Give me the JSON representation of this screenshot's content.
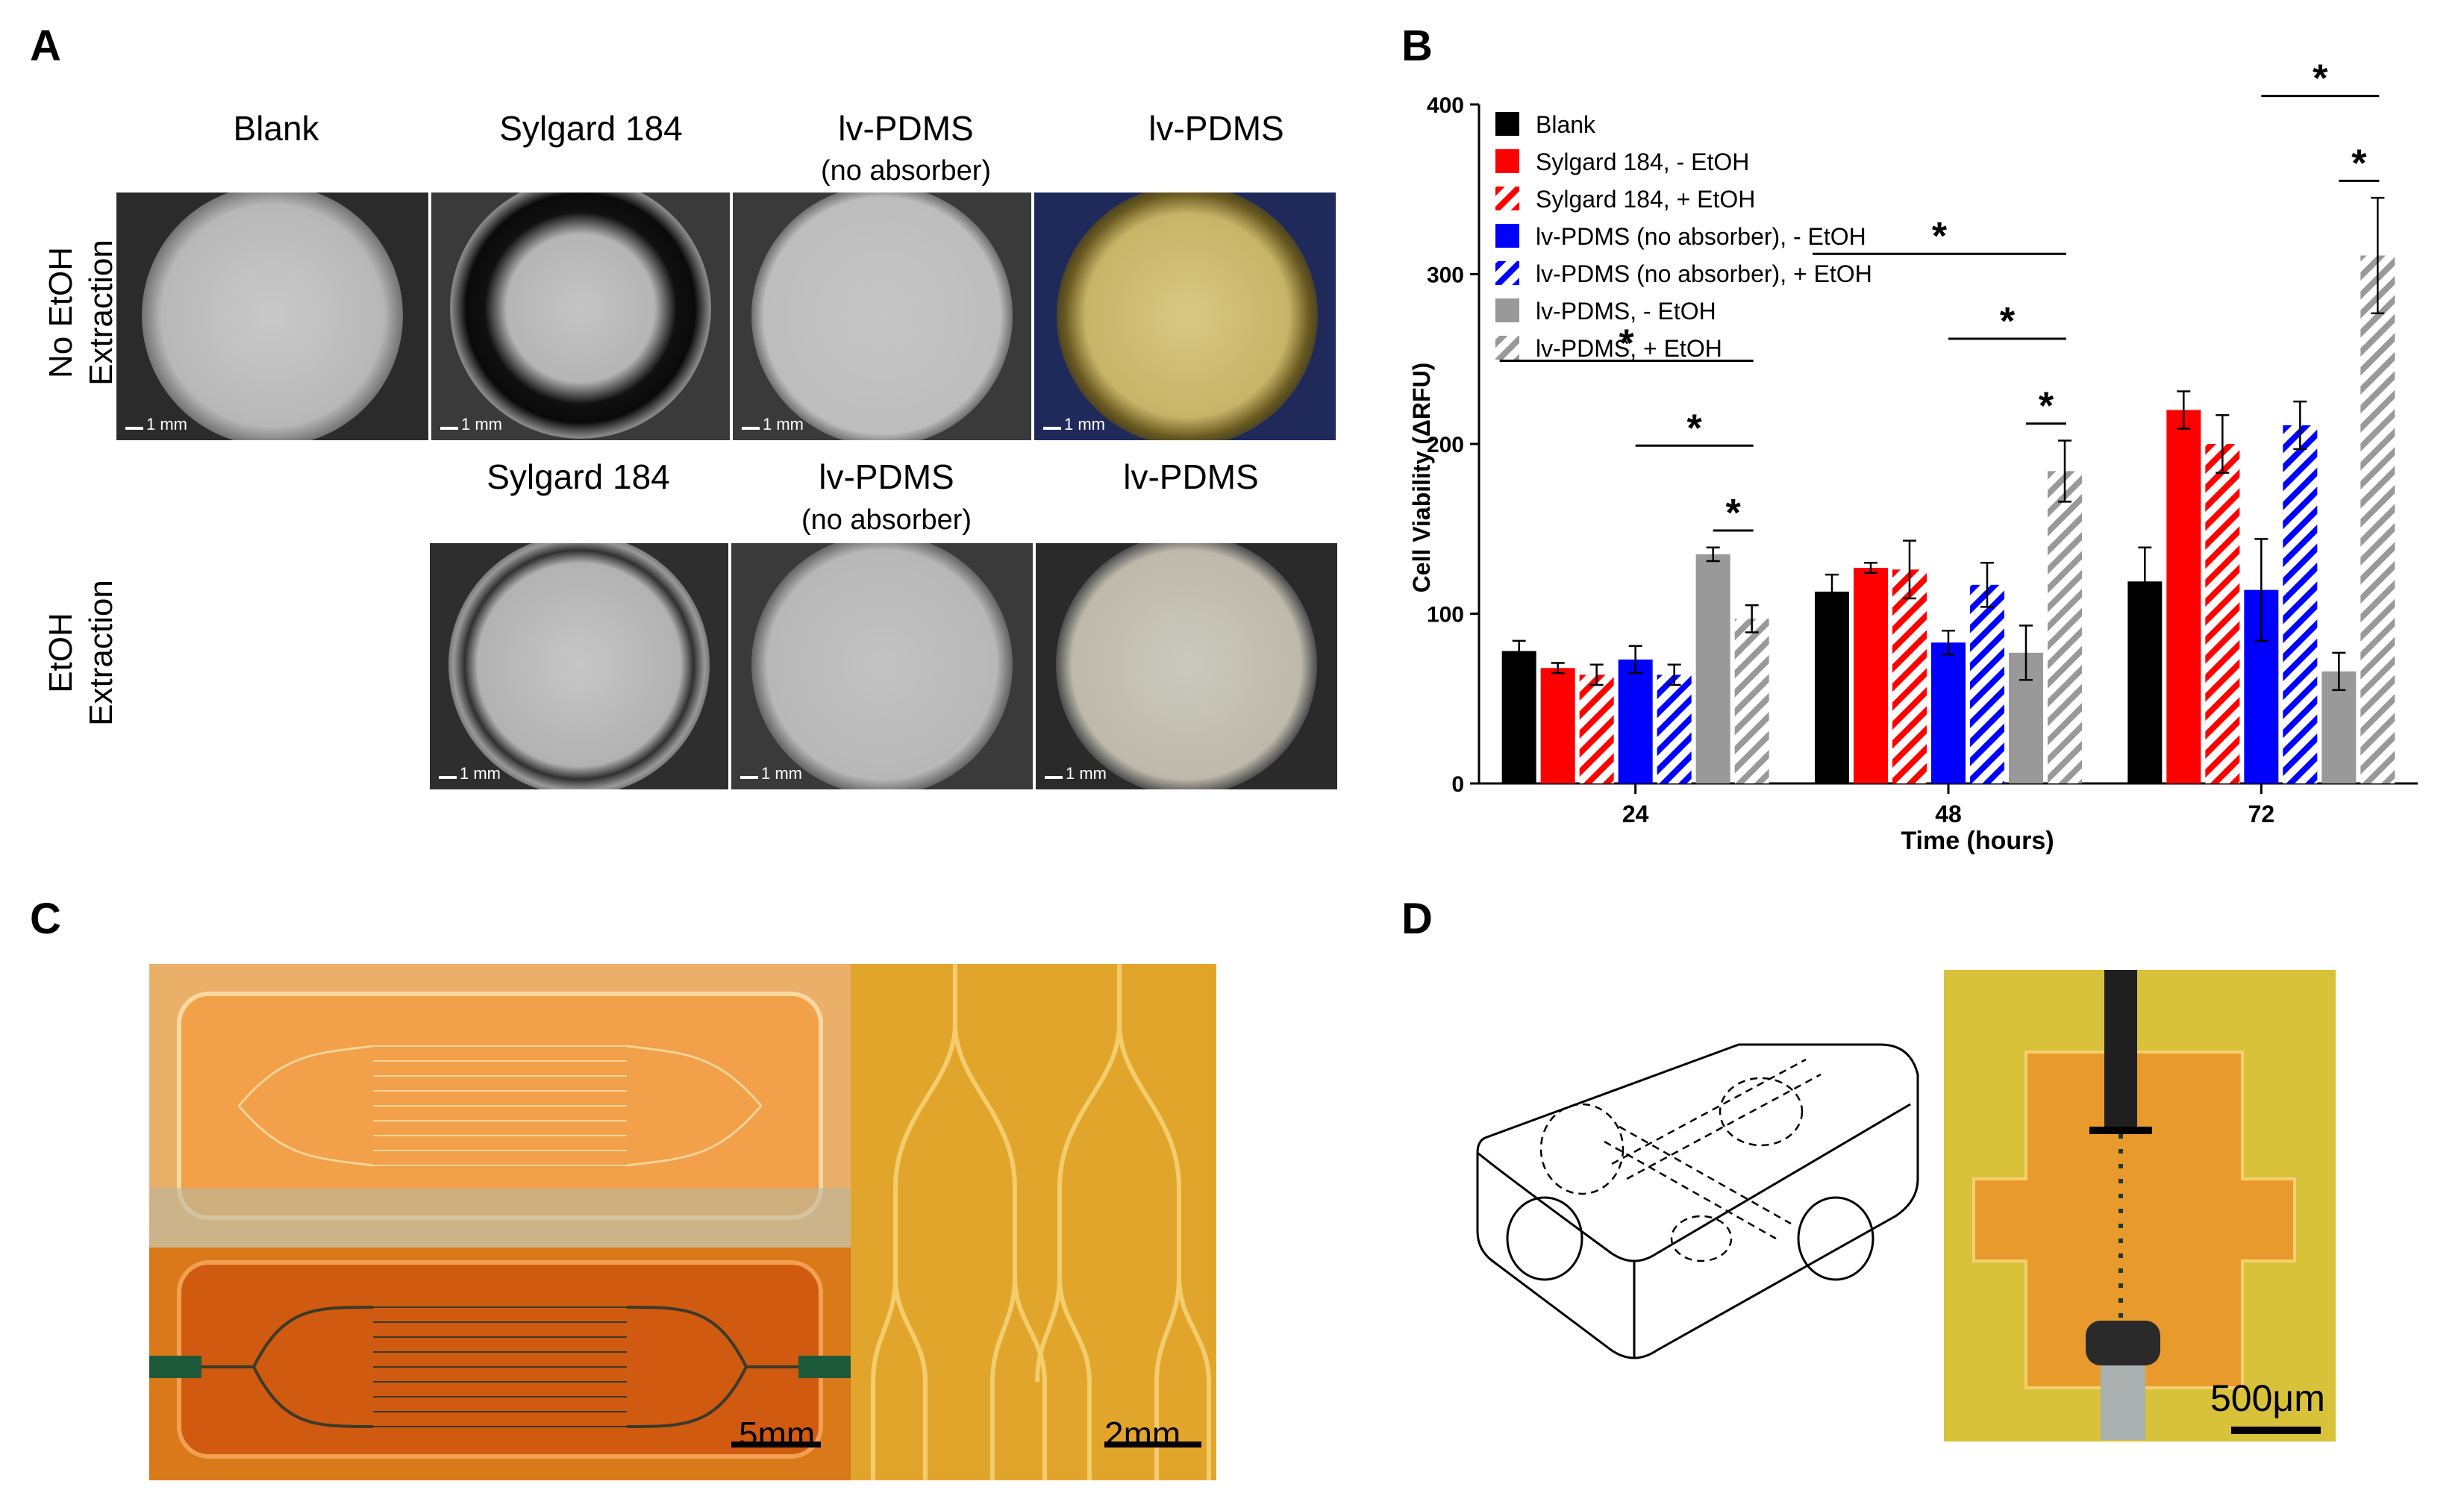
{
  "panels": {
    "a": "A",
    "b": "B",
    "c": "C",
    "d": "D"
  },
  "panel_a": {
    "top_columns": [
      {
        "label": "Blank",
        "sub": ""
      },
      {
        "label": "Sylgard 184",
        "sub": ""
      },
      {
        "label": "lv-PDMS",
        "sub": "(no absorber)"
      },
      {
        "label": "lv-PDMS",
        "sub": ""
      }
    ],
    "bottom_columns": [
      {
        "label": "Sylgard 184",
        "sub": ""
      },
      {
        "label": "lv-PDMS",
        "sub": "(no absorber)"
      },
      {
        "label": "lv-PDMS",
        "sub": ""
      }
    ],
    "row_top": [
      "No EtOH",
      "Extraction"
    ],
    "row_bottom": [
      "EtOH",
      "Extraction"
    ],
    "scale_label": "1 mm"
  },
  "chart_data": {
    "type": "bar",
    "title": "",
    "xlabel": "Time (hours)",
    "ylabel": "Cell Viability (ΔRFU)",
    "ylim": [
      0,
      400
    ],
    "yticks": [
      "0",
      "100",
      "200",
      "300",
      "400"
    ],
    "categories": [
      "24",
      "48",
      "72"
    ],
    "series": [
      {
        "name": "Blank",
        "color": "#000000",
        "hatch": false,
        "values": [
          78,
          113,
          119
        ],
        "errors": [
          6,
          10,
          20
        ]
      },
      {
        "name": "Sylgard 184, - EtOH",
        "color": "#ff0000",
        "hatch": false,
        "values": [
          68,
          127,
          220
        ],
        "errors": [
          3,
          3,
          11
        ]
      },
      {
        "name": "Sylgard 184, + EtOH",
        "color": "#ff0000",
        "hatch": true,
        "values": [
          64,
          126,
          200
        ],
        "errors": [
          6,
          17,
          17
        ]
      },
      {
        "name": "lv-PDMS (no absorber), - EtOH",
        "color": "#0000ff",
        "hatch": false,
        "values": [
          73,
          83,
          114
        ],
        "errors": [
          8,
          7,
          30
        ]
      },
      {
        "name": "lv-PDMS (no absorber), + EtOH",
        "color": "#0000ff",
        "hatch": true,
        "values": [
          64,
          117,
          211
        ],
        "errors": [
          6,
          13,
          14
        ]
      },
      {
        "name": "lv-PDMS, - EtOH",
        "color": "#999999",
        "hatch": false,
        "values": [
          135,
          77,
          66
        ],
        "errors": [
          4,
          16,
          11
        ]
      },
      {
        "name": "lv-PDMS, + EtOH",
        "color": "#999999",
        "hatch": true,
        "values": [
          97,
          184,
          311
        ],
        "errors": [
          8,
          18,
          34
        ]
      }
    ],
    "significance_marker": "*",
    "legend_position": "top-left"
  },
  "panel_c": {
    "scale_left": "5mm",
    "scale_right": "2mm"
  },
  "panel_d": {
    "scale": "500μm"
  },
  "colors": {
    "amber": "#e89a2c",
    "dark_amber": "#c96a10",
    "yellow": "#d8c23a"
  }
}
